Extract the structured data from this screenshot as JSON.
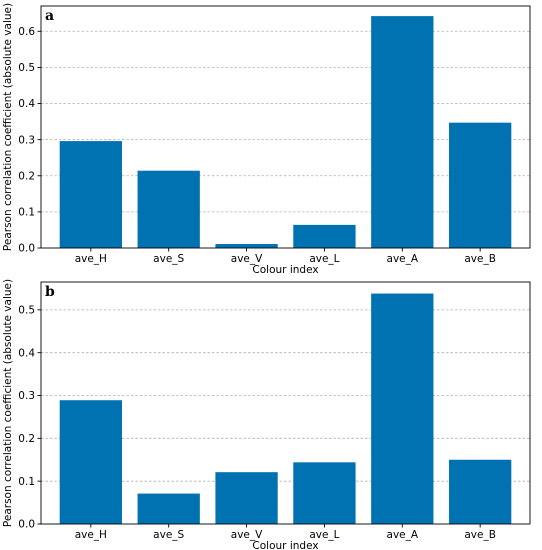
{
  "chart_data": [
    {
      "type": "bar",
      "panel_label": "a",
      "categories": [
        "ave_H",
        "ave_S",
        "ave_V",
        "ave_L",
        "ave_A",
        "ave_B"
      ],
      "values": [
        0.296,
        0.214,
        0.011,
        0.064,
        0.642,
        0.347
      ],
      "xlabel": "Colour index",
      "ylabel": "Pearson correlation coefficient (absolute value)",
      "ylim": [
        0,
        0.67
      ],
      "yticks": [
        "0.0",
        "0.1",
        "0.2",
        "0.3",
        "0.4",
        "0.5",
        "0.6"
      ],
      "bar_color": "#0072b2",
      "grid": "y-dashed"
    },
    {
      "type": "bar",
      "panel_label": "b",
      "categories": [
        "ave_H",
        "ave_S",
        "ave_V",
        "ave_L",
        "ave_A",
        "ave_B"
      ],
      "values": [
        0.289,
        0.071,
        0.121,
        0.144,
        0.538,
        0.15
      ],
      "xlabel": "Colour index",
      "ylabel": "Pearson correlation coefficient (absolute value)",
      "ylim": [
        0,
        0.565
      ],
      "yticks": [
        "0.0",
        "0.1",
        "0.2",
        "0.3",
        "0.4",
        "0.5"
      ],
      "bar_color": "#0072b2",
      "grid": "y-dashed"
    }
  ]
}
